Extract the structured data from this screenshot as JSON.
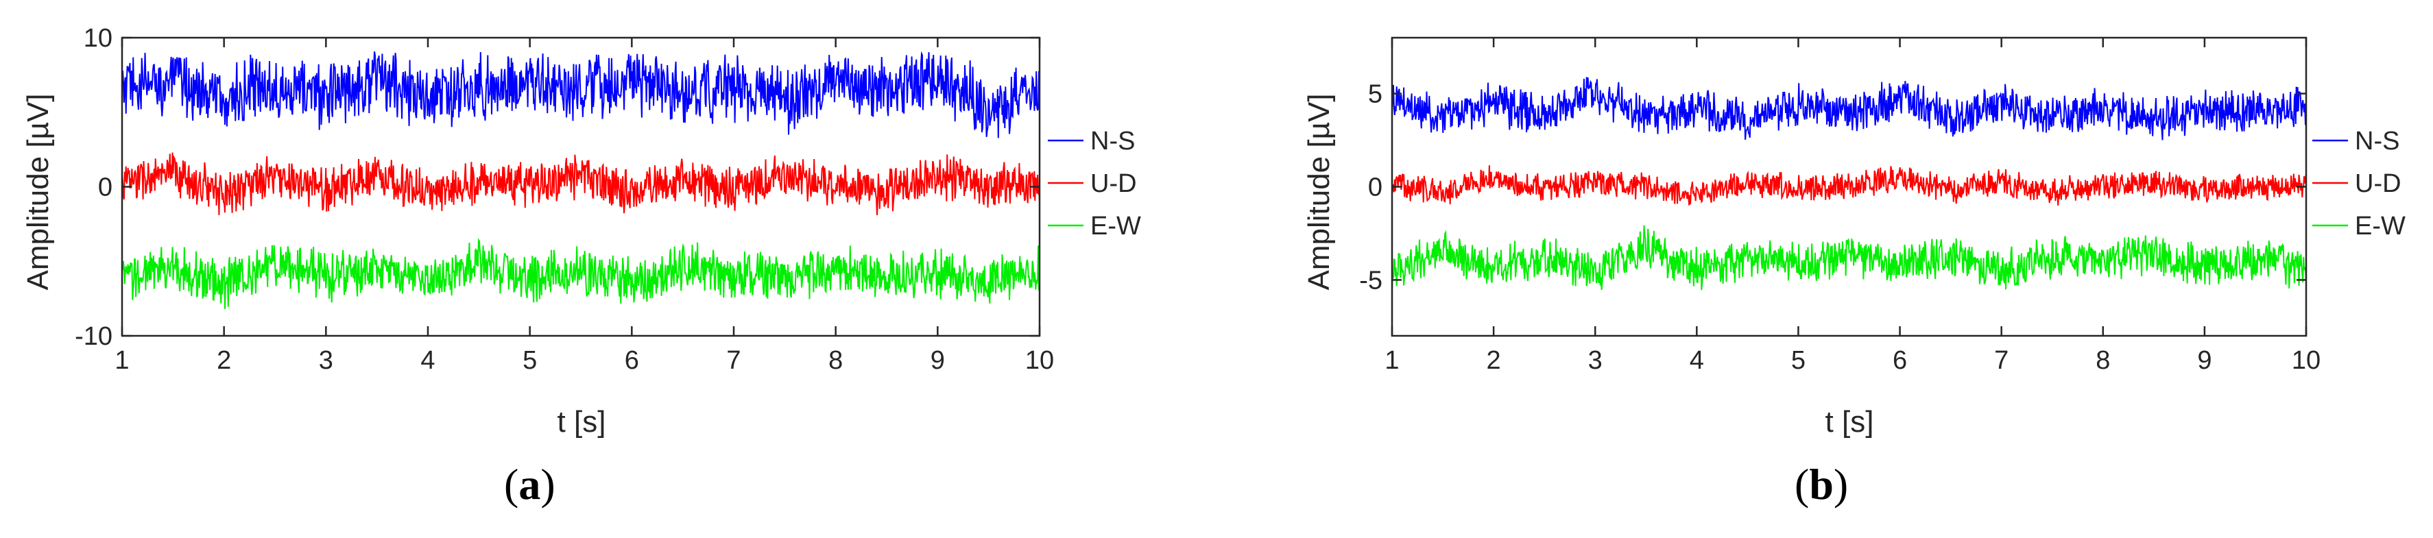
{
  "chart_data": [
    {
      "type": "line",
      "panel": "a",
      "title": "",
      "xlabel": "t [s]",
      "ylabel": "Amplitude [µV]",
      "xlim": [
        1,
        10
      ],
      "ylim": [
        -10,
        10
      ],
      "xticks": [
        1,
        2,
        3,
        4,
        5,
        6,
        7,
        8,
        9,
        10
      ],
      "yticks": [
        -10,
        0,
        10
      ],
      "grid": false,
      "legend_position": "right",
      "series": [
        {
          "name": "N-S",
          "color": "#0000ff",
          "mean": 6.5,
          "amplitude": 1.8,
          "x": [
            1.0,
            1.5,
            2.0,
            2.5,
            3.0,
            3.5,
            4.0,
            4.5,
            5.0,
            5.5,
            6.0,
            6.5,
            7.0,
            7.5,
            8.0,
            8.5,
            9.0,
            9.5,
            10.0
          ],
          "y": [
            6.5,
            7.2,
            5.8,
            6.9,
            6.1,
            7.4,
            5.9,
            6.6,
            7.0,
            6.2,
            7.3,
            6.0,
            6.8,
            5.7,
            6.9,
            6.3,
            7.6,
            5.2,
            6.4
          ]
        },
        {
          "name": "U-D",
          "color": "#ff0000",
          "mean": 0.3,
          "amplitude": 1.2,
          "x": [
            1.0,
            1.5,
            2.0,
            2.5,
            3.0,
            3.5,
            4.0,
            4.5,
            5.0,
            5.5,
            6.0,
            6.5,
            7.0,
            7.5,
            8.0,
            8.5,
            9.0,
            9.5,
            10.0
          ],
          "y": [
            0.3,
            0.8,
            -0.4,
            0.6,
            -0.2,
            0.9,
            -0.5,
            0.4,
            0.1,
            0.7,
            -0.3,
            0.5,
            -0.1,
            0.6,
            0.2,
            -0.4,
            0.8,
            0.0,
            0.3
          ]
        },
        {
          "name": "E-W",
          "color": "#00ee00",
          "mean": -5.8,
          "amplitude": 1.3,
          "x": [
            1.0,
            1.5,
            2.0,
            2.5,
            3.0,
            3.5,
            4.0,
            4.5,
            5.0,
            5.5,
            6.0,
            6.5,
            7.0,
            7.5,
            8.0,
            8.5,
            9.0,
            9.5,
            10.0
          ],
          "y": [
            -6.2,
            -5.4,
            -6.5,
            -5.1,
            -6.0,
            -5.6,
            -6.3,
            -5.2,
            -6.1,
            -5.7,
            -6.4,
            -5.3,
            -5.9,
            -6.2,
            -5.5,
            -6.0,
            -5.8,
            -6.3,
            -5.6
          ]
        }
      ]
    },
    {
      "type": "line",
      "panel": "b",
      "title": "",
      "xlabel": "t [s]",
      "ylabel": "Amplitude [µV]",
      "xlim": [
        1,
        10
      ],
      "ylim": [
        -8,
        8
      ],
      "xticks": [
        1,
        2,
        3,
        4,
        5,
        6,
        7,
        8,
        9,
        10
      ],
      "yticks": [
        -5,
        0,
        5
      ],
      "grid": false,
      "legend_position": "right",
      "series": [
        {
          "name": "N-S",
          "color": "#0000ff",
          "mean": 4.0,
          "amplitude": 0.9,
          "x": [
            1.0,
            1.5,
            2.0,
            2.5,
            3.0,
            3.5,
            4.0,
            4.5,
            5.0,
            5.5,
            6.0,
            6.5,
            7.0,
            7.5,
            8.0,
            8.5,
            9.0,
            9.5,
            10.0
          ],
          "y": [
            4.6,
            3.8,
            4.5,
            3.9,
            5.2,
            3.7,
            4.3,
            3.6,
            4.4,
            4.0,
            4.8,
            3.7,
            4.5,
            3.9,
            4.2,
            3.6,
            4.1,
            4.0,
            4.3
          ]
        },
        {
          "name": "U-D",
          "color": "#ff0000",
          "mean": 0.0,
          "amplitude": 0.6,
          "x": [
            1.0,
            1.5,
            2.0,
            2.5,
            3.0,
            3.5,
            4.0,
            4.5,
            5.0,
            5.5,
            6.0,
            6.5,
            7.0,
            7.5,
            8.0,
            8.5,
            9.0,
            9.5,
            10.0
          ],
          "y": [
            0.2,
            -0.3,
            0.5,
            -0.1,
            0.2,
            0.0,
            -0.4,
            0.3,
            -0.1,
            0.1,
            0.4,
            -0.2,
            0.3,
            -0.3,
            0.1,
            0.2,
            -0.2,
            0.0,
            0.1
          ]
        },
        {
          "name": "E-W",
          "color": "#00ee00",
          "mean": -4.0,
          "amplitude": 0.9,
          "x": [
            1.0,
            1.5,
            2.0,
            2.5,
            3.0,
            3.5,
            4.0,
            4.5,
            5.0,
            5.5,
            6.0,
            6.5,
            7.0,
            7.5,
            8.0,
            8.5,
            9.0,
            9.5,
            10.0
          ],
          "y": [
            -4.6,
            -3.5,
            -4.3,
            -3.8,
            -4.5,
            -3.2,
            -4.4,
            -3.9,
            -4.1,
            -3.6,
            -4.2,
            -3.7,
            -4.5,
            -3.8,
            -4.0,
            -3.5,
            -4.3,
            -3.9,
            -4.4
          ]
        }
      ]
    }
  ],
  "panels": [
    {
      "label_open": "(",
      "label_letter": "a",
      "label_close": ")"
    },
    {
      "label_open": "(",
      "label_letter": "b",
      "label_close": ")"
    }
  ]
}
